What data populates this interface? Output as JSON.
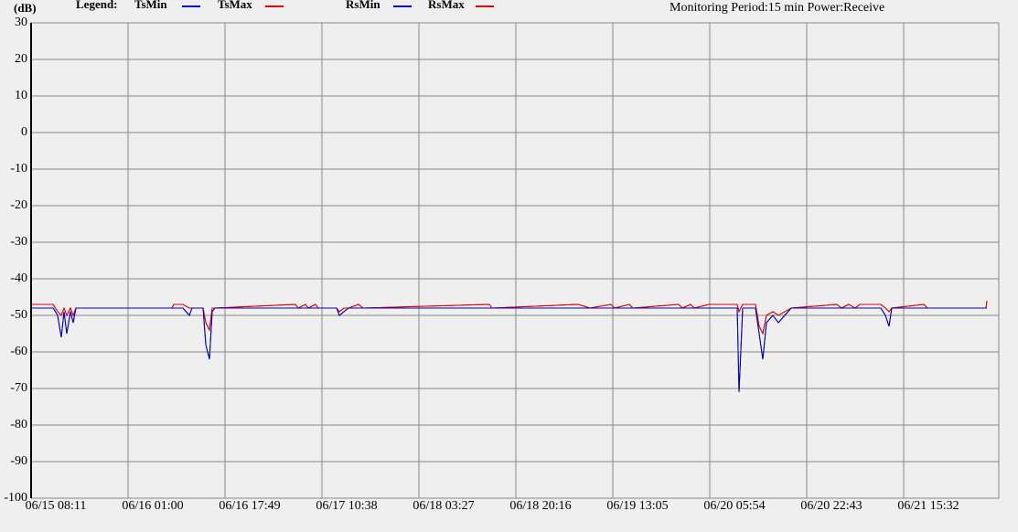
{
  "chart_data": {
    "type": "line",
    "y_unit": "(dB)",
    "legend_title": "Legend:",
    "subtitle": "Monitoring Period:15 min Power:Receive",
    "x": [
      "06/15 08:11",
      "06/15 12:00",
      "06/15 12:47",
      "06/15 13:25",
      "06/15 13:54",
      "06/15 14:22",
      "06/15 15:00",
      "06/15 15:29",
      "06/15 15:57",
      "06/16 08:37",
      "06/16 08:56",
      "06/16 10:31",
      "06/16 11:38",
      "06/16 12:06",
      "06/16 14:01",
      "06/16 14:29",
      "06/16 15:07",
      "06/16 15:36",
      "06/16 16:04",
      "06/17 06:02",
      "06/17 06:31",
      "06/17 07:47",
      "06/17 08:15",
      "06/17 09:31",
      "06/17 10:00",
      "06/17 13:10",
      "06/17 13:39",
      "06/17 14:26",
      "06/17 15:14",
      "06/17 16:59",
      "06/17 17:46",
      "06/18 15:40",
      "06/18 16:09",
      "06/19 07:03",
      "06/19 09:07",
      "06/19 12:46",
      "06/19 13:24",
      "06/19 15:56",
      "06/19 16:35",
      "06/20 00:30",
      "06/20 01:09",
      "06/20 02:34",
      "06/20 03:12",
      "06/20 05:45",
      "06/20 10:40",
      "06/20 10:59",
      "06/20 11:37",
      "06/20 12:53",
      "06/20 13:50",
      "06/20 14:28",
      "06/20 15:06",
      "06/20 15:44",
      "06/20 16:51",
      "06/20 17:48",
      "06/20 18:55",
      "06/20 20:01",
      "06/21 03:57",
      "06/21 04:45",
      "06/21 06:01",
      "06/21 07:08",
      "06/21 07:55",
      "06/21 11:34",
      "06/21 12:22",
      "06/21 13:00",
      "06/21 13:28",
      "06/21 19:02",
      "06/21 19:40",
      "06/22 05:49",
      "06/22 05:58"
    ],
    "series": [
      {
        "name": "TsMin",
        "color": "#0000c0",
        "values": [
          -48,
          -48,
          -50,
          -56,
          -49,
          -55,
          -49,
          -52,
          -48,
          -48,
          -48,
          -48,
          -50,
          -48,
          -48,
          -58,
          -62,
          -49,
          -48,
          -48,
          -48,
          -48,
          -48,
          -48,
          -48,
          -48,
          -50,
          -49,
          -48,
          -48,
          -48,
          -48,
          -48,
          -48,
          -48,
          -48,
          -48,
          -48,
          -48,
          -48,
          -48,
          -48,
          -48,
          -48,
          -48,
          -71,
          -48,
          -48,
          -48,
          -55,
          -62,
          -52,
          -50,
          -52,
          -50,
          -48,
          -48,
          -48,
          -48,
          -48,
          -48,
          -48,
          -50,
          -53,
          -48,
          -48,
          -48,
          -48,
          -48
        ]
      },
      {
        "name": "TsMax",
        "color": "#e00000",
        "values": [
          -47,
          -47,
          -49,
          -50,
          -48,
          -50,
          -48,
          -50,
          -48,
          -48,
          -47,
          -47,
          -48,
          -48,
          -48,
          -52,
          -54,
          -48,
          -48,
          -47,
          -48,
          -47,
          -48,
          -47,
          -48,
          -48,
          -49,
          -48,
          -48,
          -47,
          -48,
          -47,
          -48,
          -47,
          -48,
          -47,
          -48,
          -47,
          -48,
          -47,
          -48,
          -47,
          -48,
          -47,
          -47,
          -49,
          -47,
          -47,
          -47,
          -53,
          -55,
          -50,
          -49,
          -50,
          -49,
          -48,
          -47,
          -48,
          -47,
          -48,
          -47,
          -47,
          -48,
          -49,
          -48,
          -47,
          -48,
          -48,
          -46
        ]
      },
      {
        "name": "RsMin",
        "color": "#0000c0",
        "values": [
          -48,
          -48,
          -50,
          -56,
          -49,
          -55,
          -49,
          -52,
          -48,
          -48,
          -48,
          -48,
          -50,
          -48,
          -48,
          -58,
          -62,
          -49,
          -48,
          -48,
          -48,
          -48,
          -48,
          -48,
          -48,
          -48,
          -50,
          -49,
          -48,
          -48,
          -48,
          -48,
          -48,
          -48,
          -48,
          -48,
          -48,
          -48,
          -48,
          -48,
          -48,
          -48,
          -48,
          -48,
          -48,
          -71,
          -48,
          -48,
          -48,
          -55,
          -62,
          -52,
          -50,
          -52,
          -50,
          -48,
          -48,
          -48,
          -48,
          -48,
          -48,
          -48,
          -50,
          -53,
          -48,
          -48,
          -48,
          -48,
          -48
        ]
      },
      {
        "name": "RsMax",
        "color": "#e00000",
        "values": [
          -47,
          -47,
          -49,
          -50,
          -48,
          -50,
          -48,
          -50,
          -48,
          -48,
          -47,
          -47,
          -48,
          -48,
          -48,
          -52,
          -54,
          -48,
          -48,
          -47,
          -48,
          -47,
          -48,
          -47,
          -48,
          -48,
          -49,
          -48,
          -48,
          -47,
          -48,
          -47,
          -48,
          -47,
          -48,
          -47,
          -48,
          -47,
          -48,
          -47,
          -48,
          -47,
          -48,
          -47,
          -47,
          -49,
          -47,
          -47,
          -47,
          -53,
          -55,
          -50,
          -49,
          -50,
          -49,
          -48,
          -47,
          -48,
          -47,
          -48,
          -47,
          -47,
          -48,
          -49,
          -48,
          -47,
          -48,
          -48,
          -46
        ]
      }
    ],
    "xlim": [
      "06/15 08:11",
      "06/22 08:02"
    ],
    "xticks": [
      "06/15 08:11",
      "06/16 01:00",
      "06/16 17:49",
      "06/17 10:38",
      "06/18 03:27",
      "06/18 20:16",
      "06/19 13:05",
      "06/20 05:54",
      "06/20 22:43",
      "06/21 15:32"
    ],
    "ylim": [
      -100,
      30
    ],
    "yticks": [
      30,
      20,
      10,
      0,
      -10,
      -20,
      -30,
      -40,
      -50,
      -60,
      -70,
      -80,
      -90,
      -100
    ],
    "grid": true
  }
}
